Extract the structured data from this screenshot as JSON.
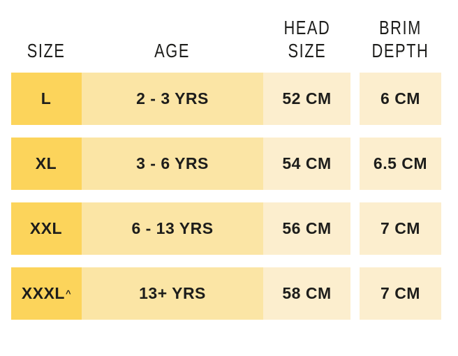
{
  "colors": {
    "size_cell": "#FCD45B",
    "age_cell": "#FBE5A5",
    "value_cell": "#FCEECE",
    "text": "#1D1D1B",
    "background": "#FFFFFF"
  },
  "table": {
    "columns": {
      "size": "SIZE",
      "age": "AGE",
      "head_size": "HEAD\nSIZE",
      "brim_depth": "BRIM\nDEPTH"
    },
    "rows": [
      {
        "size": "L",
        "size_note": "",
        "age": "2 - 3 YRS",
        "head_size": "52 CM",
        "brim_depth": "6 CM"
      },
      {
        "size": "XL",
        "size_note": "",
        "age": "3 - 6 YRS",
        "head_size": "54 CM",
        "brim_depth": "6.5 CM"
      },
      {
        "size": "XXL",
        "size_note": "",
        "age": "6 - 13 YRS",
        "head_size": "56 CM",
        "brim_depth": "7 CM"
      },
      {
        "size": "XXXL",
        "size_note": "^",
        "age": "13+ YRS",
        "head_size": "58 CM",
        "brim_depth": "7 CM"
      }
    ]
  }
}
